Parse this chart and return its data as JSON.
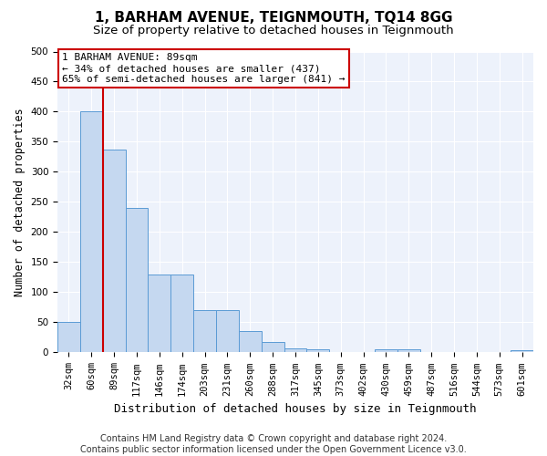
{
  "title": "1, BARHAM AVENUE, TEIGNMOUTH, TQ14 8GG",
  "subtitle": "Size of property relative to detached houses in Teignmouth",
  "xlabel": "Distribution of detached houses by size in Teignmouth",
  "ylabel": "Number of detached properties",
  "categories": [
    "32sqm",
    "60sqm",
    "89sqm",
    "117sqm",
    "146sqm",
    "174sqm",
    "203sqm",
    "231sqm",
    "260sqm",
    "288sqm",
    "317sqm",
    "345sqm",
    "373sqm",
    "402sqm",
    "430sqm",
    "459sqm",
    "487sqm",
    "516sqm",
    "544sqm",
    "573sqm",
    "601sqm"
  ],
  "values": [
    50,
    400,
    337,
    240,
    130,
    130,
    70,
    70,
    35,
    17,
    7,
    5,
    0,
    0,
    5,
    5,
    0,
    0,
    0,
    0,
    3
  ],
  "bar_color": "#c5d8f0",
  "bar_edge_color": "#5b9bd5",
  "vline_color": "#cc0000",
  "vline_index": 2,
  "ylim": [
    0,
    500
  ],
  "yticks": [
    0,
    50,
    100,
    150,
    200,
    250,
    300,
    350,
    400,
    450,
    500
  ],
  "annotation_text": "1 BARHAM AVENUE: 89sqm\n← 34% of detached houses are smaller (437)\n65% of semi-detached houses are larger (841) →",
  "annotation_box_facecolor": "#ffffff",
  "annotation_box_edgecolor": "#cc0000",
  "footer_line1": "Contains HM Land Registry data © Crown copyright and database right 2024.",
  "footer_line2": "Contains public sector information licensed under the Open Government Licence v3.0.",
  "plot_bg_color": "#edf2fb",
  "title_fontsize": 11,
  "subtitle_fontsize": 9.5,
  "xlabel_fontsize": 9,
  "ylabel_fontsize": 8.5,
  "tick_fontsize": 7.5,
  "annotation_fontsize": 8,
  "footer_fontsize": 7
}
